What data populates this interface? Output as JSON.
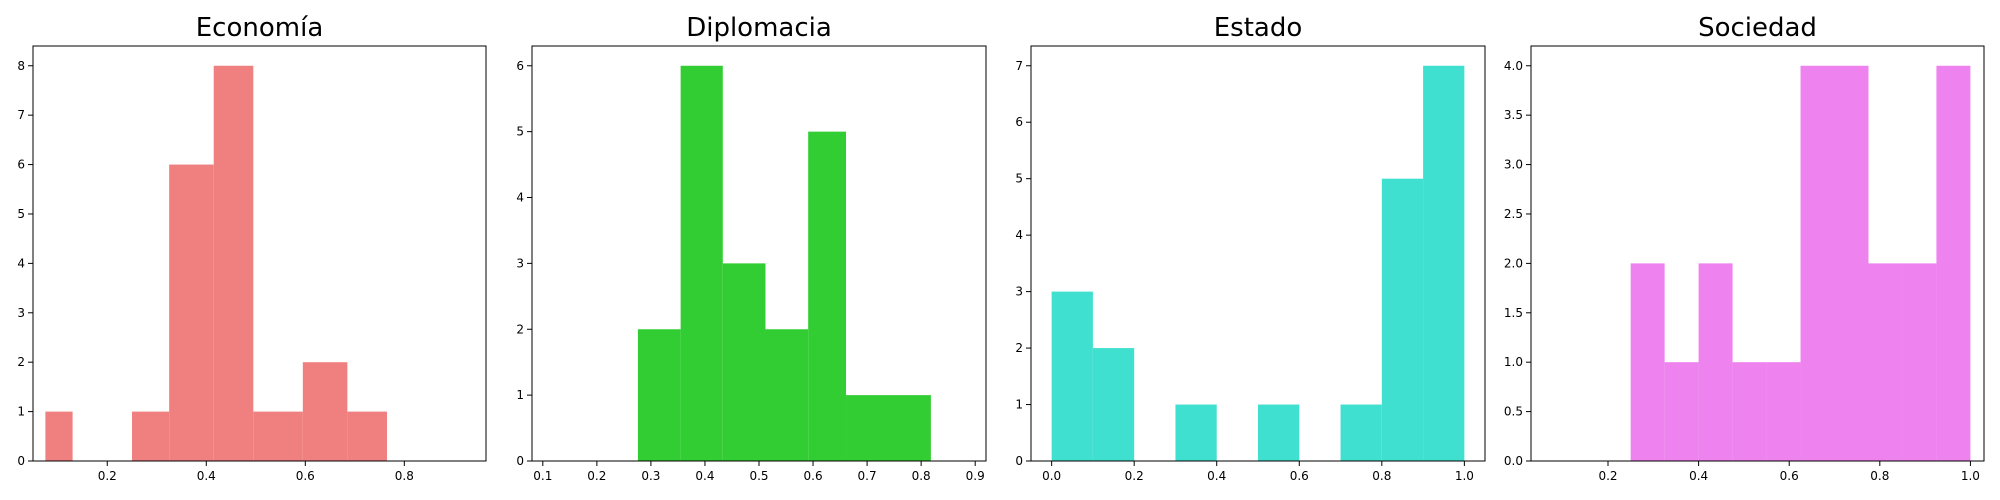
{
  "chart_data": [
    {
      "type": "bar",
      "title": "Economía",
      "color": "#f08080",
      "xlim": [
        0.05,
        0.965
      ],
      "ylim": [
        0,
        8.4
      ],
      "xticks": [
        0.2,
        0.4,
        0.6,
        0.8
      ],
      "xtick_labels": [
        "0.2",
        "0.4",
        "0.6",
        "0.8"
      ],
      "yticks": [
        0,
        1,
        2,
        3,
        4,
        5,
        6,
        7,
        8
      ],
      "ytick_labels": [
        "0",
        "1",
        "2",
        "3",
        "4",
        "5",
        "6",
        "7",
        "8"
      ],
      "bins": [
        {
          "x0": 0.075,
          "x1": 0.13,
          "count": 1
        },
        {
          "x0": 0.25,
          "x1": 0.325,
          "count": 1
        },
        {
          "x0": 0.325,
          "x1": 0.415,
          "count": 6
        },
        {
          "x0": 0.415,
          "x1": 0.495,
          "count": 8
        },
        {
          "x0": 0.495,
          "x1": 0.595,
          "count": 1
        },
        {
          "x0": 0.595,
          "x1": 0.685,
          "count": 2
        },
        {
          "x0": 0.685,
          "x1": 0.765,
          "count": 1
        }
      ]
    },
    {
      "type": "bar",
      "title": "Diplomacia",
      "color": "#32cd32",
      "xlim": [
        0.08,
        0.92
      ],
      "ylim": [
        0,
        6.3
      ],
      "xticks": [
        0.1,
        0.2,
        0.3,
        0.4,
        0.5,
        0.6,
        0.7,
        0.8,
        0.9
      ],
      "xtick_labels": [
        "0.1",
        "0.2",
        "0.3",
        "0.4",
        "0.5",
        "0.6",
        "0.7",
        "0.8",
        "0.9"
      ],
      "yticks": [
        0,
        1,
        2,
        3,
        4,
        5,
        6
      ],
      "ytick_labels": [
        "0",
        "1",
        "2",
        "3",
        "4",
        "5",
        "6"
      ],
      "bins": [
        {
          "x0": 0.276,
          "x1": 0.355,
          "count": 2
        },
        {
          "x0": 0.355,
          "x1": 0.433,
          "count": 6
        },
        {
          "x0": 0.433,
          "x1": 0.512,
          "count": 3
        },
        {
          "x0": 0.512,
          "x1": 0.591,
          "count": 2
        },
        {
          "x0": 0.591,
          "x1": 0.661,
          "count": 5
        },
        {
          "x0": 0.661,
          "x1": 0.818,
          "count": 1
        }
      ]
    },
    {
      "type": "bar",
      "title": "Estado",
      "color": "#40e0d0",
      "xlim": [
        -0.05,
        1.05
      ],
      "ylim": [
        0,
        7.35
      ],
      "xticks": [
        0.0,
        0.2,
        0.4,
        0.6,
        0.8,
        1.0
      ],
      "xtick_labels": [
        "0.0",
        "0.2",
        "0.4",
        "0.6",
        "0.8",
        "1.0"
      ],
      "yticks": [
        0,
        1,
        2,
        3,
        4,
        5,
        6,
        7
      ],
      "ytick_labels": [
        "0",
        "1",
        "2",
        "3",
        "4",
        "5",
        "6",
        "7"
      ],
      "bins": [
        {
          "x0": 0.0,
          "x1": 0.1,
          "count": 3
        },
        {
          "x0": 0.1,
          "x1": 0.2,
          "count": 2
        },
        {
          "x0": 0.3,
          "x1": 0.4,
          "count": 1
        },
        {
          "x0": 0.5,
          "x1": 0.6,
          "count": 1
        },
        {
          "x0": 0.7,
          "x1": 0.8,
          "count": 1
        },
        {
          "x0": 0.8,
          "x1": 0.9,
          "count": 5
        },
        {
          "x0": 0.9,
          "x1": 1.0,
          "count": 7
        }
      ]
    },
    {
      "type": "bar",
      "title": "Sociedad",
      "color": "#ee82ee",
      "xlim": [
        0.03,
        1.03
      ],
      "ylim": [
        0,
        4.2
      ],
      "xticks": [
        0.2,
        0.4,
        0.6,
        0.8,
        1.0
      ],
      "xtick_labels": [
        "0.2",
        "0.4",
        "0.6",
        "0.8",
        "1.0"
      ],
      "yticks": [
        0,
        0.5,
        1.0,
        1.5,
        2.0,
        2.5,
        3.0,
        3.5,
        4.0
      ],
      "ytick_labels": [
        "0.0",
        "0.5",
        "1.0",
        "1.5",
        "2.0",
        "2.5",
        "3.0",
        "3.5",
        "4.0"
      ],
      "bins": [
        {
          "x0": 0.25,
          "x1": 0.325,
          "count": 2
        },
        {
          "x0": 0.325,
          "x1": 0.4,
          "count": 1
        },
        {
          "x0": 0.4,
          "x1": 0.475,
          "count": 2
        },
        {
          "x0": 0.475,
          "x1": 0.55,
          "count": 1
        },
        {
          "x0": 0.55,
          "x1": 0.625,
          "count": 1
        },
        {
          "x0": 0.625,
          "x1": 0.775,
          "count": 4
        },
        {
          "x0": 0.775,
          "x1": 0.85,
          "count": 2
        },
        {
          "x0": 0.85,
          "x1": 0.925,
          "count": 2
        },
        {
          "x0": 0.925,
          "x1": 1.0,
          "count": 4
        }
      ]
    }
  ]
}
